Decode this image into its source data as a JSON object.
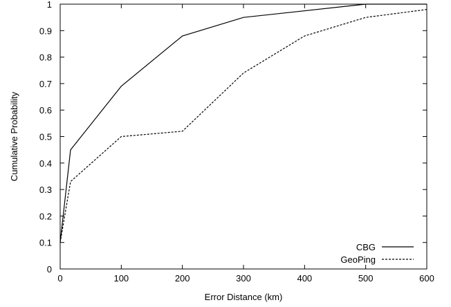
{
  "chart_data": {
    "type": "line",
    "title": "",
    "xlabel": "Error Distance (km)",
    "ylabel": "Cumulative Probability",
    "xlim": [
      0,
      600
    ],
    "ylim": [
      0,
      1
    ],
    "x_ticks": [
      0,
      100,
      200,
      300,
      400,
      500,
      600
    ],
    "y_ticks": [
      0,
      0.1,
      0.2,
      0.3,
      0.4,
      0.5,
      0.6,
      0.7,
      0.8,
      0.9,
      1
    ],
    "x_tick_labels": [
      "0",
      "100",
      "200",
      "300",
      "400",
      "500",
      "600"
    ],
    "y_tick_labels": [
      "0",
      "0.1",
      "0.2",
      "0.3",
      "0.4",
      "0.5",
      "0.6",
      "0.7",
      "0.8",
      "0.9",
      "1"
    ],
    "grid": false,
    "legend_position": "bottom-right",
    "series": [
      {
        "name": "CBG",
        "style": "solid",
        "color": "#000000",
        "x": [
          0,
          17,
          100,
          200,
          300,
          500,
          600
        ],
        "y": [
          0.1,
          0.45,
          0.69,
          0.88,
          0.95,
          1.0,
          1.0
        ]
      },
      {
        "name": "GeoPing",
        "style": "dashed",
        "color": "#000000",
        "x": [
          0,
          17,
          100,
          200,
          300,
          400,
          500,
          600
        ],
        "y": [
          0.1,
          0.33,
          0.5,
          0.52,
          0.74,
          0.88,
          0.95,
          0.98
        ]
      }
    ]
  }
}
